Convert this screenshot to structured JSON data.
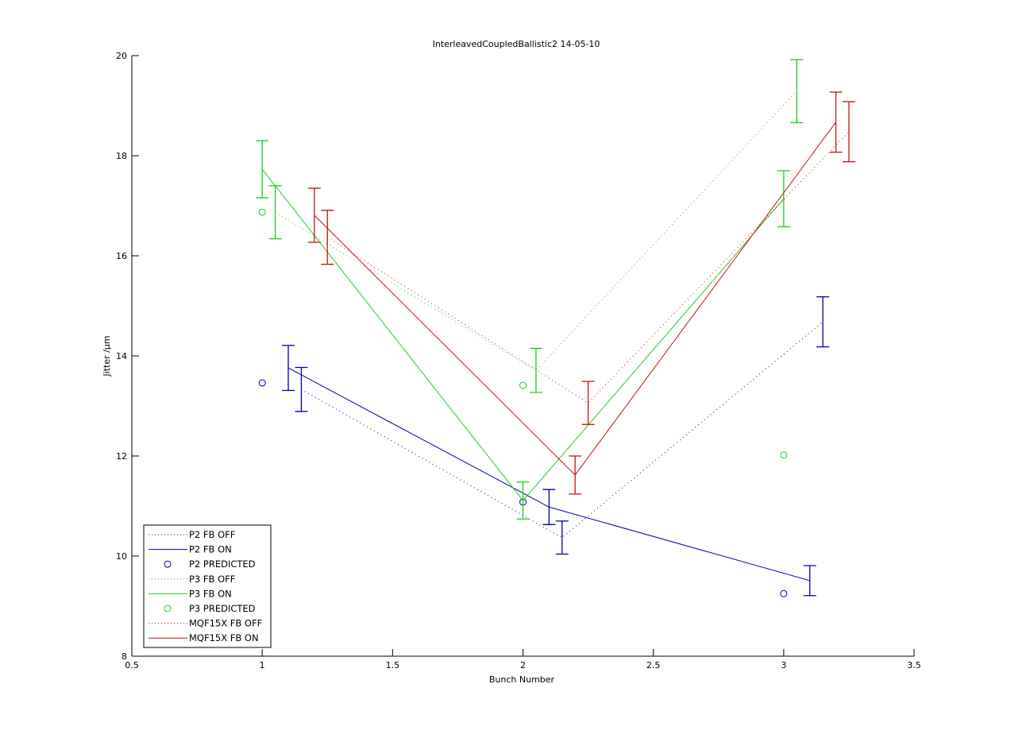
{
  "chart_data": {
    "type": "line",
    "title": "InterleavedCoupledBallistic2 14-05-10",
    "xlabel": "Bunch Number",
    "ylabel": "Jitter /µm",
    "xlim": [
      0.5,
      3.5
    ],
    "ylim": [
      8,
      20
    ],
    "xticks": [
      "0.5",
      "1",
      "1.5",
      "2",
      "2.5",
      "3",
      "3.5"
    ],
    "yticks": [
      "8",
      "10",
      "12",
      "14",
      "16",
      "18",
      "20"
    ],
    "grid": false,
    "legend_position": "bottom-left",
    "series": [
      {
        "name": "P2 FB OFF",
        "color": "#0000aa",
        "style": "dotted",
        "x": [
          1.15,
          2.15,
          3.15
        ],
        "y": [
          13.33,
          10.37,
          14.68
        ],
        "err": [
          0.44,
          0.33,
          0.5
        ]
      },
      {
        "name": "P2 FB ON",
        "color": "#0000aa",
        "style": "solid",
        "x": [
          1.1,
          2.1,
          3.1
        ],
        "y": [
          13.76,
          10.98,
          9.51
        ],
        "err": [
          0.45,
          0.35,
          0.3
        ]
      },
      {
        "name": "P2 PREDICTED",
        "color": "#0000aa",
        "style": "marker",
        "x": [
          1,
          2,
          3
        ],
        "y": [
          13.46,
          11.08,
          9.25
        ]
      },
      {
        "name": "P3 FB OFF",
        "color": "#22cc22",
        "style": "dotted",
        "x": [
          1.05,
          2.05,
          3.05
        ],
        "y": [
          16.87,
          13.71,
          19.29
        ],
        "err": [
          0.53,
          0.44,
          0.63
        ]
      },
      {
        "name": "P3 FB ON",
        "color": "#22cc22",
        "style": "solid",
        "x": [
          1,
          2,
          3
        ],
        "y": [
          17.73,
          11.11,
          17.14
        ],
        "err": [
          0.57,
          0.37,
          0.56
        ]
      },
      {
        "name": "P3 PREDICTED",
        "color": "#22cc22",
        "style": "marker",
        "x": [
          1,
          2,
          3
        ],
        "y": [
          16.87,
          13.41,
          12.02
        ]
      },
      {
        "name": "MQF15X FB OFF",
        "color": "#cc1111",
        "style": "dotted",
        "x": [
          1.25,
          2.25,
          3.25
        ],
        "y": [
          16.37,
          13.06,
          18.48
        ],
        "err": [
          0.54,
          0.43,
          0.6
        ]
      },
      {
        "name": "MQF15X FB ON",
        "color": "#cc1111",
        "style": "solid",
        "x": [
          1.2,
          2.2,
          3.2
        ],
        "y": [
          16.81,
          11.62,
          18.67
        ],
        "err": [
          0.54,
          0.38,
          0.6
        ]
      }
    ]
  }
}
